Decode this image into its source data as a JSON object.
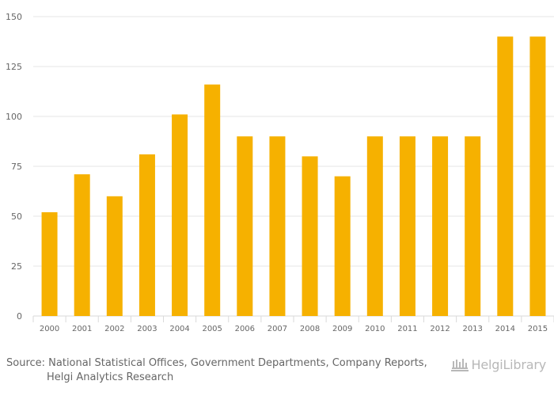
{
  "chart_data": {
    "type": "bar",
    "title": "",
    "xlabel": "",
    "ylabel": "",
    "categories": [
      "2000",
      "2001",
      "2002",
      "2003",
      "2004",
      "2005",
      "2006",
      "2007",
      "2008",
      "2009",
      "2010",
      "2011",
      "2012",
      "2013",
      "2014",
      "2015"
    ],
    "values": [
      52,
      71,
      60,
      81,
      101,
      116,
      90,
      90,
      80,
      70,
      90,
      90,
      90,
      90,
      140,
      140
    ],
    "ylim": [
      0,
      150
    ],
    "yticks": [
      0,
      25,
      50,
      75,
      100,
      125,
      150
    ],
    "grid": true,
    "legend": "none"
  },
  "colors": {
    "bar": "#F6B100",
    "grid": "#E6E6E6",
    "axis": "#DADADA",
    "text": "#666666",
    "brand": "#B8B8B8"
  },
  "footer": {
    "source_line1": "Source: National Statistical Offices, Government Departments, Company Reports,",
    "source_line2": "Helgi Analytics Research",
    "brand": "HelgiLibrary"
  },
  "icons": {
    "brand": "library-icon"
  }
}
